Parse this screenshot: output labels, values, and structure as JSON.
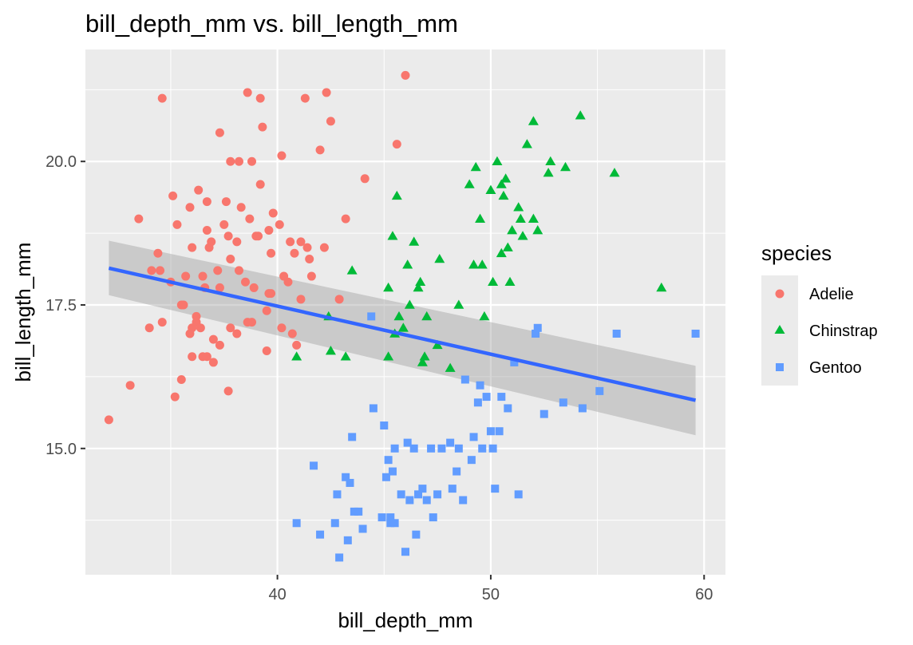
{
  "chart_data": {
    "type": "scatter",
    "title": "bill_depth_mm vs. bill_length_mm",
    "xlabel": "bill_depth_mm",
    "ylabel": "bill_length_mm",
    "xlim": [
      31,
      61
    ],
    "ylim": [
      12.8,
      21.95
    ],
    "x_ticks": [
      40,
      50,
      60
    ],
    "y_ticks": [
      15.0,
      17.5,
      20.0
    ],
    "x_tick_labels": [
      "40",
      "50",
      "60"
    ],
    "y_tick_labels": [
      "15.0",
      "17.5",
      "20.0"
    ],
    "grid": true,
    "legend": {
      "title": "species",
      "position": "right",
      "entries": [
        {
          "name": "Adelie",
          "color": "#F8766D",
          "shape": "circle"
        },
        {
          "name": "Chinstrap",
          "color": "#00BA38",
          "shape": "triangle"
        },
        {
          "name": "Gentoo",
          "color": "#619CFF",
          "shape": "square"
        }
      ]
    },
    "smooth": {
      "method": "lm",
      "color": "#3366FF",
      "x_range": [
        32.1,
        59.6
      ],
      "start": 18.14,
      "end": 15.84,
      "se_start": [
        17.67,
        18.62
      ],
      "se_end": [
        15.23,
        16.44
      ]
    },
    "series": [
      {
        "name": "Adelie",
        "points": [
          [
            32.1,
            15.5
          ],
          [
            33.1,
            16.1
          ],
          [
            33.5,
            19.0
          ],
          [
            34.0,
            17.1
          ],
          [
            34.1,
            18.1
          ],
          [
            34.4,
            18.4
          ],
          [
            34.5,
            18.1
          ],
          [
            34.6,
            21.1
          ],
          [
            34.6,
            17.2
          ],
          [
            35.0,
            17.9
          ],
          [
            35.1,
            19.4
          ],
          [
            35.2,
            15.9
          ],
          [
            35.3,
            18.9
          ],
          [
            35.5,
            17.5
          ],
          [
            35.5,
            16.2
          ],
          [
            35.6,
            17.5
          ],
          [
            35.7,
            18.0
          ],
          [
            35.9,
            19.2
          ],
          [
            35.9,
            17.0
          ],
          [
            36.0,
            18.5
          ],
          [
            36.0,
            17.1
          ],
          [
            36.0,
            16.6
          ],
          [
            36.2,
            17.2
          ],
          [
            36.2,
            17.3
          ],
          [
            36.3,
            19.5
          ],
          [
            36.4,
            17.1
          ],
          [
            36.5,
            18.0
          ],
          [
            36.5,
            16.6
          ],
          [
            36.6,
            17.8
          ],
          [
            36.7,
            19.3
          ],
          [
            36.7,
            18.8
          ],
          [
            36.7,
            16.6
          ],
          [
            36.8,
            18.5
          ],
          [
            36.9,
            18.6
          ],
          [
            37.0,
            16.9
          ],
          [
            37.0,
            16.5
          ],
          [
            37.2,
            18.1
          ],
          [
            37.3,
            17.8
          ],
          [
            37.3,
            16.8
          ],
          [
            37.3,
            20.5
          ],
          [
            37.5,
            18.9
          ],
          [
            37.6,
            19.3
          ],
          [
            37.7,
            18.7
          ],
          [
            37.7,
            16.0
          ],
          [
            37.8,
            17.1
          ],
          [
            37.8,
            18.3
          ],
          [
            37.8,
            20.0
          ],
          [
            38.1,
            18.6
          ],
          [
            38.1,
            17.0
          ],
          [
            38.2,
            18.1
          ],
          [
            38.2,
            20.0
          ],
          [
            38.3,
            19.2
          ],
          [
            38.5,
            17.9
          ],
          [
            38.6,
            21.2
          ],
          [
            38.6,
            17.2
          ],
          [
            38.7,
            19.0
          ],
          [
            38.8,
            17.2
          ],
          [
            38.8,
            20.0
          ],
          [
            38.9,
            17.8
          ],
          [
            39.0,
            18.7
          ],
          [
            39.1,
            18.7
          ],
          [
            39.2,
            19.6
          ],
          [
            39.2,
            21.1
          ],
          [
            39.3,
            20.6
          ],
          [
            39.5,
            16.7
          ],
          [
            39.5,
            17.4
          ],
          [
            39.6,
            17.7
          ],
          [
            39.6,
            18.8
          ],
          [
            39.7,
            18.4
          ],
          [
            39.7,
            17.7
          ],
          [
            39.8,
            19.1
          ],
          [
            40.1,
            18.9
          ],
          [
            40.2,
            17.1
          ],
          [
            40.2,
            20.1
          ],
          [
            40.3,
            18.0
          ],
          [
            40.5,
            17.9
          ],
          [
            40.6,
            18.6
          ],
          [
            40.7,
            17.0
          ],
          [
            40.8,
            18.4
          ],
          [
            40.9,
            16.8
          ],
          [
            41.1,
            17.6
          ],
          [
            41.1,
            18.6
          ],
          [
            41.3,
            21.1
          ],
          [
            41.4,
            18.5
          ],
          [
            41.5,
            18.3
          ],
          [
            41.6,
            18.0
          ],
          [
            42.0,
            20.2
          ],
          [
            42.2,
            18.5
          ],
          [
            42.3,
            21.2
          ],
          [
            42.5,
            20.7
          ],
          [
            42.9,
            17.6
          ],
          [
            43.2,
            19.0
          ],
          [
            44.1,
            19.7
          ],
          [
            45.6,
            20.3
          ],
          [
            46.0,
            21.5
          ]
        ]
      },
      {
        "name": "Chinstrap",
        "points": [
          [
            40.9,
            16.6
          ],
          [
            42.4,
            17.3
          ],
          [
            42.5,
            16.7
          ],
          [
            43.2,
            16.6
          ],
          [
            43.5,
            18.1
          ],
          [
            45.2,
            17.8
          ],
          [
            45.2,
            16.6
          ],
          [
            45.4,
            18.7
          ],
          [
            45.5,
            17.0
          ],
          [
            45.6,
            19.4
          ],
          [
            45.7,
            17.3
          ],
          [
            45.9,
            17.1
          ],
          [
            46.1,
            18.2
          ],
          [
            46.2,
            17.5
          ],
          [
            46.4,
            18.6
          ],
          [
            46.6,
            17.8
          ],
          [
            46.7,
            17.9
          ],
          [
            46.8,
            16.5
          ],
          [
            46.9,
            16.6
          ],
          [
            47.0,
            17.3
          ],
          [
            47.5,
            16.8
          ],
          [
            47.6,
            18.3
          ],
          [
            48.1,
            16.4
          ],
          [
            48.5,
            17.5
          ],
          [
            49.0,
            19.6
          ],
          [
            49.2,
            18.2
          ],
          [
            49.3,
            19.9
          ],
          [
            49.5,
            19.0
          ],
          [
            49.6,
            18.2
          ],
          [
            49.7,
            17.3
          ],
          [
            50.0,
            19.5
          ],
          [
            50.1,
            17.9
          ],
          [
            50.3,
            20.0
          ],
          [
            50.5,
            18.4
          ],
          [
            50.5,
            19.6
          ],
          [
            50.6,
            19.4
          ],
          [
            50.7,
            19.7
          ],
          [
            50.8,
            18.5
          ],
          [
            50.9,
            17.9
          ],
          [
            51.0,
            18.8
          ],
          [
            51.3,
            19.2
          ],
          [
            51.4,
            19.0
          ],
          [
            51.5,
            18.7
          ],
          [
            51.7,
            20.3
          ],
          [
            52.0,
            19.0
          ],
          [
            52.0,
            20.7
          ],
          [
            52.2,
            18.8
          ],
          [
            52.7,
            19.8
          ],
          [
            52.8,
            20.0
          ],
          [
            53.5,
            19.9
          ],
          [
            54.2,
            20.8
          ],
          [
            55.8,
            19.8
          ],
          [
            58.0,
            17.8
          ]
        ]
      },
      {
        "name": "Gentoo",
        "points": [
          [
            40.9,
            13.7
          ],
          [
            41.7,
            14.7
          ],
          [
            42.0,
            13.5
          ],
          [
            42.7,
            13.7
          ],
          [
            42.8,
            14.2
          ],
          [
            42.9,
            13.1
          ],
          [
            43.2,
            14.5
          ],
          [
            43.3,
            13.4
          ],
          [
            43.4,
            14.4
          ],
          [
            43.5,
            15.2
          ],
          [
            43.6,
            13.9
          ],
          [
            43.8,
            13.9
          ],
          [
            44.0,
            13.6
          ],
          [
            44.4,
            17.3
          ],
          [
            44.5,
            15.7
          ],
          [
            44.9,
            13.8
          ],
          [
            45.0,
            15.4
          ],
          [
            45.1,
            14.5
          ],
          [
            45.2,
            14.8
          ],
          [
            45.3,
            13.7
          ],
          [
            45.3,
            13.8
          ],
          [
            45.4,
            14.6
          ],
          [
            45.5,
            13.7
          ],
          [
            45.5,
            15.0
          ],
          [
            45.8,
            14.2
          ],
          [
            46.0,
            13.2
          ],
          [
            46.1,
            15.1
          ],
          [
            46.2,
            14.1
          ],
          [
            46.4,
            15.0
          ],
          [
            46.5,
            13.5
          ],
          [
            46.6,
            14.2
          ],
          [
            46.8,
            14.3
          ],
          [
            47.0,
            14.1
          ],
          [
            47.2,
            15.0
          ],
          [
            47.3,
            13.8
          ],
          [
            47.5,
            14.2
          ],
          [
            47.7,
            15.0
          ],
          [
            48.1,
            15.1
          ],
          [
            48.2,
            14.3
          ],
          [
            48.4,
            14.6
          ],
          [
            48.5,
            15.0
          ],
          [
            48.7,
            14.1
          ],
          [
            48.8,
            16.2
          ],
          [
            49.1,
            14.8
          ],
          [
            49.2,
            15.2
          ],
          [
            49.4,
            15.8
          ],
          [
            49.5,
            16.1
          ],
          [
            49.6,
            15.0
          ],
          [
            49.8,
            15.9
          ],
          [
            50.0,
            15.3
          ],
          [
            50.1,
            15.0
          ],
          [
            50.2,
            14.3
          ],
          [
            50.4,
            15.3
          ],
          [
            50.5,
            15.9
          ],
          [
            50.8,
            15.7
          ],
          [
            51.1,
            16.5
          ],
          [
            51.3,
            14.2
          ],
          [
            52.1,
            17.0
          ],
          [
            52.2,
            17.1
          ],
          [
            52.5,
            15.6
          ],
          [
            53.4,
            15.8
          ],
          [
            54.3,
            15.7
          ],
          [
            55.1,
            16.0
          ],
          [
            55.9,
            17.0
          ],
          [
            59.6,
            17.0
          ]
        ]
      }
    ]
  }
}
